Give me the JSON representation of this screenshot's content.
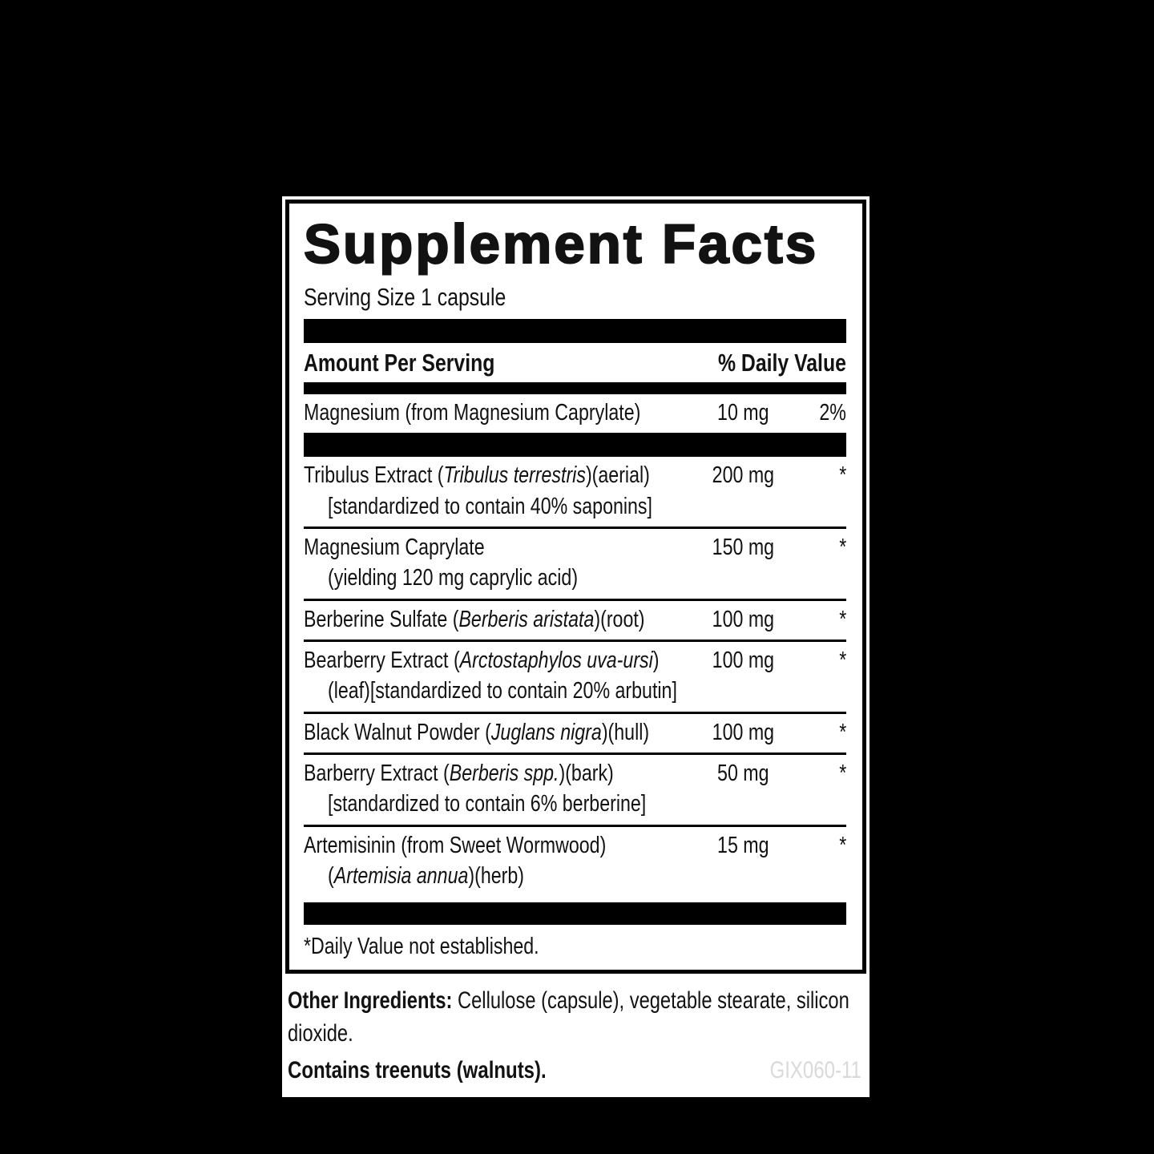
{
  "colors": {
    "page_background": "#000000",
    "label_background": "#ffffff",
    "text": "#121212",
    "rule_bars": "#000000",
    "product_code": "#d9d9d9"
  },
  "label": {
    "title": "Supplement Facts",
    "serving_size": "Serving Size 1 capsule",
    "header": {
      "amount": "Amount Per Serving",
      "daily_value": "% Daily Value"
    },
    "rows": [
      {
        "name_pre": "Magnesium (from Magnesium Caprylate)",
        "name_it": "",
        "name_post": "",
        "amount": "10 mg",
        "dv": "2%",
        "note_pre": "",
        "note_it": "",
        "note_post": ""
      },
      {
        "name_pre": "Tribulus Extract (",
        "name_it": "Tribulus terrestris",
        "name_post": ")(aerial)",
        "amount": "200 mg",
        "dv": "*",
        "note_pre": "[standardized to contain 40% saponins]",
        "note_it": "",
        "note_post": ""
      },
      {
        "name_pre": "Magnesium Caprylate",
        "name_it": "",
        "name_post": "",
        "amount": "150 mg",
        "dv": "*",
        "note_pre": "(yielding 120 mg caprylic acid)",
        "note_it": "",
        "note_post": ""
      },
      {
        "name_pre": "Berberine Sulfate (",
        "name_it": "Berberis aristata",
        "name_post": ")(root)",
        "amount": "100 mg",
        "dv": "*",
        "note_pre": "",
        "note_it": "",
        "note_post": ""
      },
      {
        "name_pre": "Bearberry Extract (",
        "name_it": "Arctostaphylos uva-ursi",
        "name_post": ")",
        "amount": "100 mg",
        "dv": "*",
        "note_pre": "(leaf)[standardized to contain 20% arbutin]",
        "note_it": "",
        "note_post": ""
      },
      {
        "name_pre": "Black Walnut Powder (",
        "name_it": "Juglans nigra",
        "name_post": ")(hull)",
        "amount": "100 mg",
        "dv": "*",
        "note_pre": "",
        "note_it": "",
        "note_post": ""
      },
      {
        "name_pre": "Barberry Extract (",
        "name_it": "Berberis spp.",
        "name_post": ")(bark)",
        "amount": "50 mg",
        "dv": "*",
        "note_pre": "[standardized to contain 6% berberine]",
        "note_it": "",
        "note_post": ""
      },
      {
        "name_pre": "Artemisinin (from Sweet Wormwood)",
        "name_it": "",
        "name_post": "",
        "amount": "15 mg",
        "dv": "*",
        "note_pre": "(",
        "note_it": "Artemisia annua",
        "note_post": ")(herb)"
      }
    ],
    "footnote": "*Daily Value not established.",
    "other_ingredients": {
      "label": "Other Ingredients:",
      "rest": " Cellulose (capsule), vegetable stearate, silicon dioxide."
    },
    "contains": "Contains treenuts (walnuts).",
    "code": "GIX060-11"
  }
}
